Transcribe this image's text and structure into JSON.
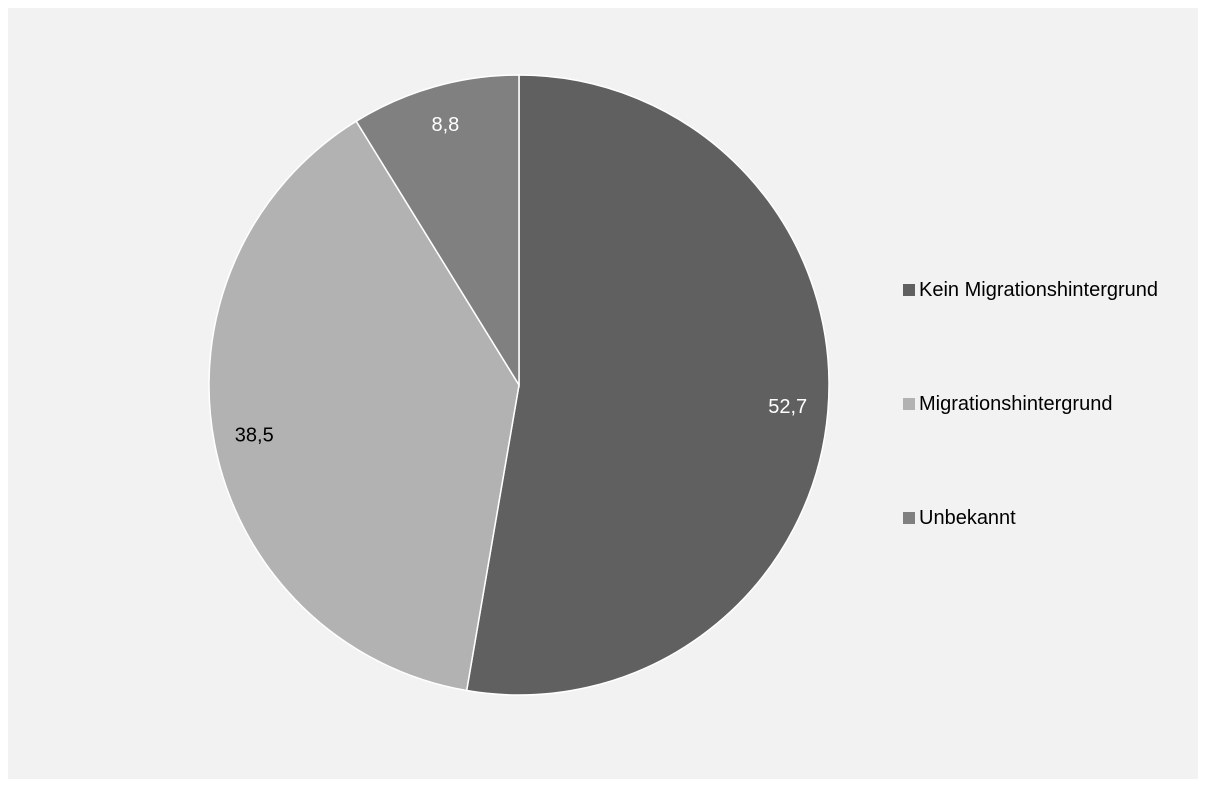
{
  "chart_data": {
    "type": "pie",
    "slices": [
      {
        "label": "Kein Migrationshintergrund",
        "value": 52.7,
        "value_label": "52,7",
        "color": "#606060",
        "label_color": "#ffffff"
      },
      {
        "label": "Migrationshintergrund",
        "value": 38.5,
        "value_label": "38,5",
        "color": "#b2b2b2",
        "label_color": "#000000"
      },
      {
        "label": "Unbekannt",
        "value": 8.8,
        "value_label": "8,8",
        "color": "#808080",
        "label_color": "#ffffff"
      }
    ],
    "start": "12 o'clock",
    "direction": "clockwise",
    "legend_position": "right",
    "background": "#f2f2f2"
  }
}
